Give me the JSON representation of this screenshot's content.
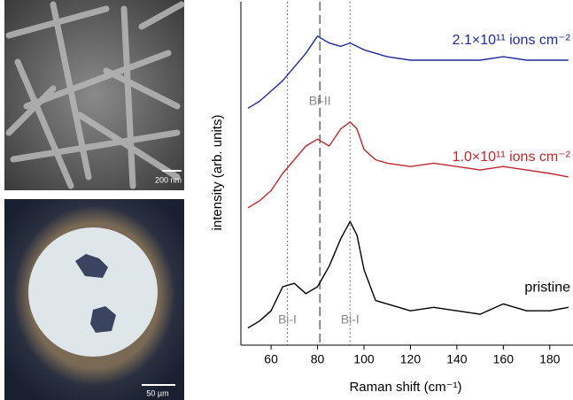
{
  "panels": [
    {
      "scale_bar": "200 nm"
    },
    {
      "scale_bar": "50 µm"
    }
  ],
  "chart_data": {
    "type": "line",
    "x_label": "Raman shift (cm⁻¹)",
    "y_label": "intensity (arb. units)",
    "x": [
      50,
      55,
      60,
      65,
      70,
      75,
      80,
      85,
      90,
      94,
      97,
      100,
      105,
      110,
      120,
      130,
      140,
      150,
      160,
      170,
      180,
      188
    ],
    "series": [
      {
        "name": "pristine",
        "color": "#000000",
        "values": [
          0.5,
          0.7,
          1.0,
          1.7,
          1.8,
          1.5,
          1.7,
          2.3,
          3.1,
          3.6,
          3.2,
          2.2,
          1.3,
          1.2,
          1.0,
          1.1,
          1.0,
          0.9,
          1.2,
          1.0,
          1.0,
          1.1
        ]
      },
      {
        "name": "1.0×10¹¹ ions cm⁻²",
        "color": "#c0272d",
        "values": [
          4.0,
          4.2,
          4.5,
          5.0,
          5.4,
          5.8,
          6.0,
          5.8,
          6.3,
          6.5,
          6.3,
          5.7,
          5.4,
          5.3,
          5.2,
          5.3,
          5.2,
          5.1,
          5.2,
          5.1,
          5.0,
          4.9
        ]
      },
      {
        "name": "2.1×10¹¹ ions cm⁻²",
        "color": "#1f2a9c",
        "values": [
          6.9,
          7.1,
          7.4,
          7.7,
          8.1,
          8.5,
          9.0,
          8.8,
          8.7,
          8.8,
          8.7,
          8.6,
          8.5,
          8.4,
          8.3,
          8.3,
          8.3,
          8.3,
          8.4,
          8.3,
          8.3,
          8.3
        ]
      }
    ],
    "xlim": [
      47,
      190
    ],
    "ylim": [
      0,
      10
    ],
    "xticks": [
      60,
      80,
      100,
      120,
      140,
      160,
      180
    ],
    "vlines": [
      {
        "x": 67,
        "style": "dotted"
      },
      {
        "x": 81,
        "style": "dashed"
      },
      {
        "x": 94,
        "style": "dotted"
      }
    ],
    "annotations": [
      {
        "text": "Bi-I",
        "x": 67
      },
      {
        "text": "Bi-II",
        "x": 81
      },
      {
        "text": "Bi-I",
        "x": 94
      }
    ]
  }
}
